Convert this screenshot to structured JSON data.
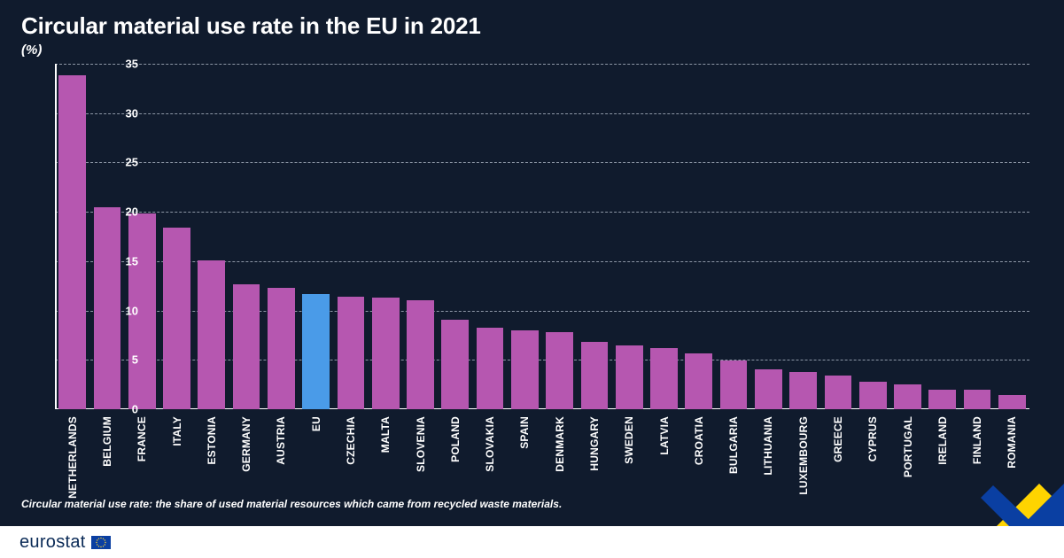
{
  "chart": {
    "type": "bar",
    "title": "Circular material use rate in the EU in 2021",
    "title_fontsize": 26,
    "unit_label": "(%)",
    "unit_fontsize": 15,
    "footnote": "Circular material use rate: the share of used material resources which came from recycled waste materials.",
    "footnote_fontsize": 12,
    "background_color": "#101b2d",
    "text_color": "#ffffff",
    "grid_color": "#8d97a6",
    "axis_color": "#ffffff",
    "ylim": [
      0,
      35
    ],
    "ytick_step": 5,
    "ytick_fontsize": 13,
    "bar_color": "#b657b0",
    "highlight_color": "#4a9be8",
    "highlight_key": "EU",
    "bar_width_ratio": 0.78,
    "xlabel_fontsize": 12,
    "categories": [
      "NETHERLANDS",
      "BELGIUM",
      "FRANCE",
      "ITALY",
      "ESTONIA",
      "GERMANY",
      "AUSTRIA",
      "EU",
      "CZECHIA",
      "MALTA",
      "SLOVENIA",
      "POLAND",
      "SLOVAKIA",
      "SPAIN",
      "DENMARK",
      "HUNGARY",
      "SWEDEN",
      "LATVIA",
      "CROATIA",
      "BULGARIA",
      "LITHUANIA",
      "LUXEMBOURG",
      "GREECE",
      "CYPRUS",
      "PORTUGAL",
      "IRELAND",
      "FINLAND",
      "ROMANIA"
    ],
    "values": [
      33.8,
      20.5,
      19.8,
      18.4,
      15.1,
      12.7,
      12.3,
      11.7,
      11.4,
      11.3,
      11.0,
      9.1,
      8.3,
      8.0,
      7.8,
      6.8,
      6.5,
      6.2,
      5.7,
      4.9,
      4.0,
      3.8,
      3.4,
      2.8,
      2.5,
      2.0,
      2.0,
      1.4
    ]
  },
  "logo": {
    "bar_color": "#ffffff",
    "text": "eurostat",
    "text_color": "#0b2b57",
    "text_fontsize": 20,
    "flag_bg": "#0a3fa2",
    "flag_star_color": "#ffd633"
  },
  "ribbon": {
    "yellow": "#ffd400",
    "blue": "#0a3fa2"
  }
}
